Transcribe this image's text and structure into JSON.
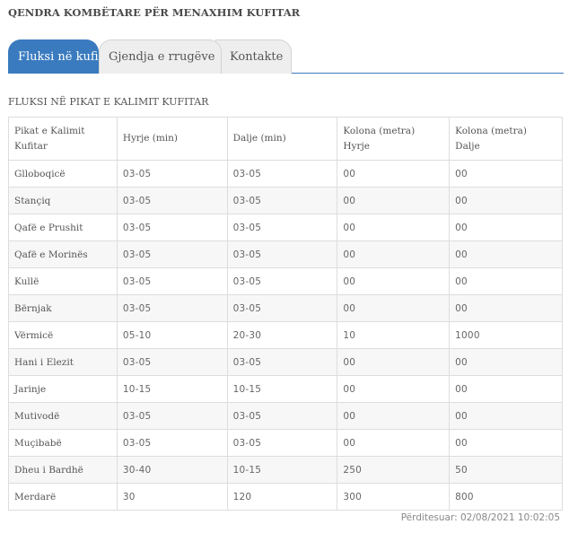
{
  "header": {
    "title": "QENDRA KOMBËTARE PËR MENAXHIM KUFITAR"
  },
  "tabs": [
    {
      "label": "Fluksi në kufi",
      "active": true
    },
    {
      "label": "Gjendja e rrugëve",
      "active": false
    },
    {
      "label": "Kontakte",
      "active": false
    }
  ],
  "section": {
    "title": "FLUKSI NË PIKAT E KALIMIT KUFITAR"
  },
  "table": {
    "headers": {
      "col1_line1": "Pikat e Kalimit",
      "col1_line2": "Kufitar",
      "col2": "Hyrje (min)",
      "col3": "Dalje (min)",
      "col4_line1": "Kolona (metra)",
      "col4_line2": "Hyrje",
      "col5_line1": "Kolona (metra)",
      "col5_line2": "Dalje"
    },
    "rows": [
      [
        "Glloboqicë",
        "03-05",
        "03-05",
        "00",
        "00"
      ],
      [
        "Stançiq",
        "03-05",
        "03-05",
        "00",
        "00"
      ],
      [
        "Qafë e Prushit",
        "03-05",
        "03-05",
        "00",
        "00"
      ],
      [
        "Qafë e Morinës",
        "03-05",
        "03-05",
        "00",
        "00"
      ],
      [
        "Kullë",
        "03-05",
        "03-05",
        "00",
        "00"
      ],
      [
        "Bërnjak",
        "03-05",
        "03-05",
        "00",
        "00"
      ],
      [
        "Vërmicë",
        "05-10",
        "20-30",
        "10",
        "1000"
      ],
      [
        "Hani i Elezit",
        "03-05",
        "03-05",
        "00",
        "00"
      ],
      [
        "Jarinje",
        "10-15",
        "10-15",
        "00",
        "00"
      ],
      [
        "Mutivodë",
        "03-05",
        "03-05",
        "00",
        "00"
      ],
      [
        "Muçibabë",
        "03-05",
        "03-05",
        "00",
        "00"
      ],
      [
        "Dheu i Bardhë",
        "30-40",
        "10-15",
        "250",
        "50"
      ],
      [
        "Merdarë",
        "30",
        "120",
        "300",
        "800"
      ]
    ]
  },
  "footer": {
    "updated": "Përditesuar: 02/08/2021 10:02:05"
  },
  "colors": {
    "accent": "#3a7bbf",
    "tab_inactive": "#eeeeee",
    "row_stripe": "#f7f7f7",
    "border": "#dddddd"
  }
}
